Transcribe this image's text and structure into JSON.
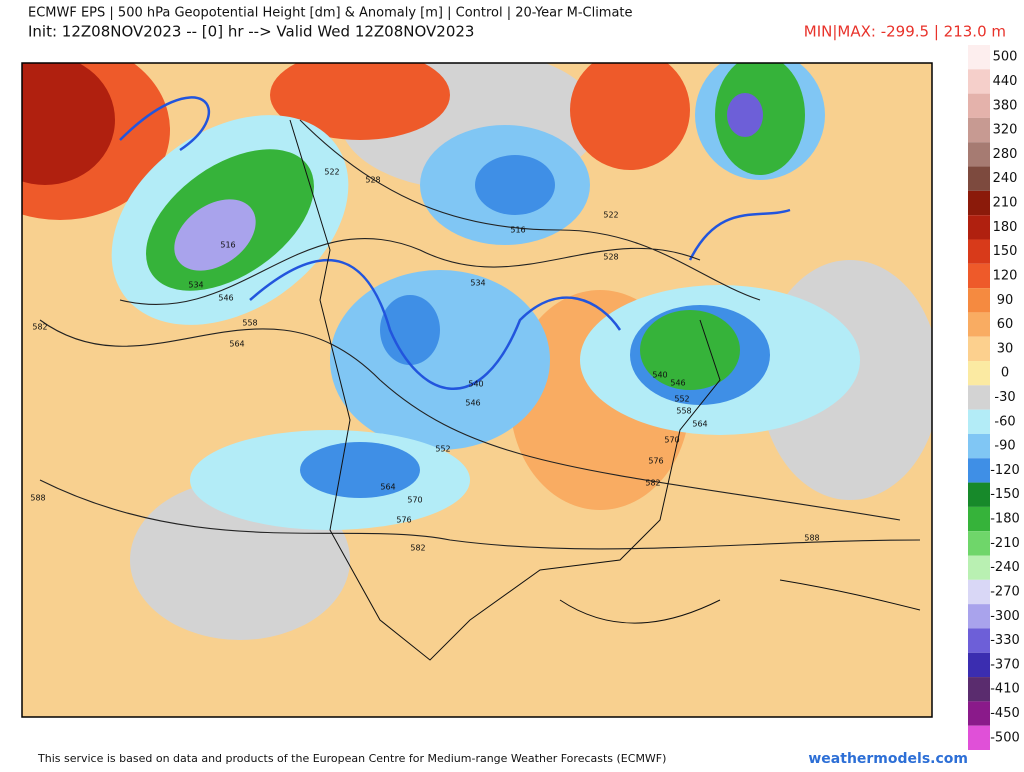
{
  "header": {
    "title": "ECMWF EPS | 500 hPa Geopotential Height [dm] & Anomaly [m] | Control | 20-Year M-Climate",
    "subtitle": "Init: 12Z08NOV2023 -- [0] hr --> Valid Wed 12Z08NOV2023",
    "minmax": "MIN|MAX: -299.5 | 213.0 m"
  },
  "colorbar": {
    "labels": [
      500,
      440,
      380,
      320,
      280,
      240,
      210,
      180,
      150,
      120,
      90,
      60,
      30,
      0,
      -30,
      -60,
      -90,
      -120,
      -150,
      -180,
      -210,
      -240,
      -270,
      -300,
      -330,
      -370,
      -410,
      -450,
      -500
    ],
    "colors": [
      "#fdeeee",
      "#f5cfca",
      "#e4b2ab",
      "#c79a92",
      "#a67b72",
      "#7d4a3e",
      "#8b1a0a",
      "#b0200f",
      "#d83a1a",
      "#ee5a2a",
      "#f58a40",
      "#f9ac62",
      "#fcd08e",
      "#fbeaa2",
      "#d3d3d3",
      "#b3ecf7",
      "#80c6f4",
      "#3f8fe6",
      "#17892a",
      "#36b33a",
      "#6fd66a",
      "#b9f0b2",
      "#d9d7f6",
      "#a9a3ec",
      "#6d5fd8",
      "#3b2db0",
      "#5a2c6e",
      "#8a1a8a",
      "#e050d8"
    ]
  },
  "map": {
    "contour_labels": [
      "522",
      "516",
      "534",
      "546",
      "558",
      "564",
      "582",
      "588",
      "528",
      "516",
      "522",
      "528",
      "534",
      "540",
      "546",
      "552",
      "564",
      "570",
      "576",
      "582",
      "588",
      "582",
      "576",
      "570",
      "564",
      "558",
      "552",
      "546",
      "540"
    ]
  },
  "footer": {
    "credit": "This service is based on data and products of the European Centre for Medium-range Weather Forecasts (ECMWF)",
    "site": "weathermodels.com"
  }
}
